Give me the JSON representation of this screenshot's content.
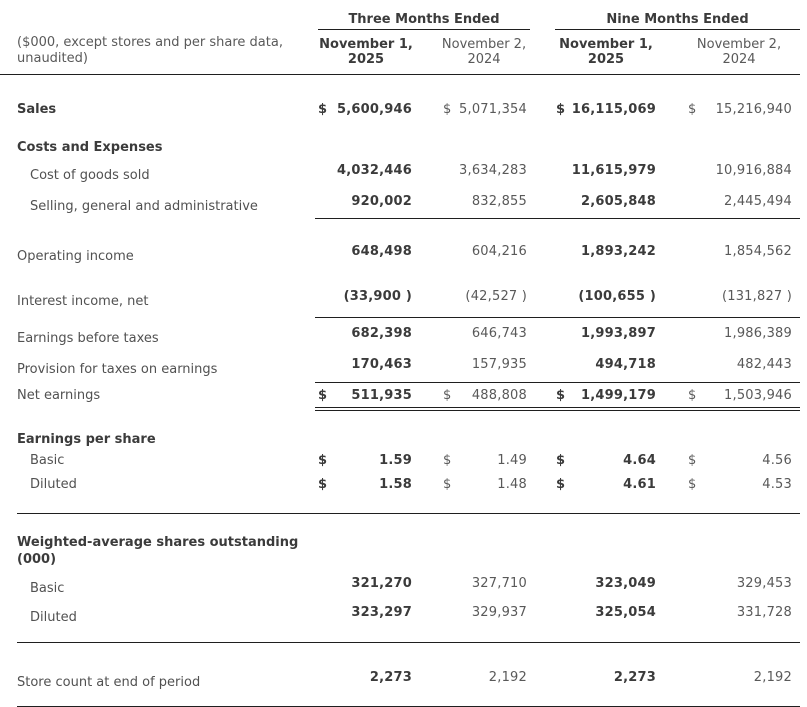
{
  "colors": {
    "text_bold": "#3b3b3b",
    "text_regular": "#595959",
    "rule": "#1f1f1f",
    "background": "#ffffff"
  },
  "header": {
    "note": "($000, except stores and per share data, unaudited)",
    "groups": [
      "Three Months Ended",
      "Nine Months Ended"
    ],
    "columns": [
      "November 1,\n2025",
      "November 2,\n2024",
      "November 1,\n2025",
      "November 2,\n2024"
    ]
  },
  "table": {
    "rows": [
      {
        "label": "Sales",
        "cells": [
          {
            "d": "$",
            "v": "5,600,946"
          },
          {
            "d": "$",
            "v": "5,071,354"
          },
          {
            "d": "$",
            "v": "16,115,069"
          },
          {
            "d": "$",
            "v": "15,216,940"
          }
        ]
      },
      {
        "label": "Costs and Expenses"
      },
      {
        "label": "Cost of goods sold",
        "cells": [
          {
            "v": "4,032,446"
          },
          {
            "v": "3,634,283"
          },
          {
            "v": "11,615,979"
          },
          {
            "v": "10,916,884"
          }
        ]
      },
      {
        "label": "Selling, general and administrative",
        "cells": [
          {
            "v": "920,002"
          },
          {
            "v": "832,855"
          },
          {
            "v": "2,605,848"
          },
          {
            "v": "2,445,494"
          }
        ]
      },
      {
        "label": "Operating income",
        "cells": [
          {
            "v": "648,498"
          },
          {
            "v": "604,216"
          },
          {
            "v": "1,893,242"
          },
          {
            "v": "1,854,562"
          }
        ]
      },
      {
        "label": "Interest income, net",
        "cells": [
          {
            "v": "(33,900 )"
          },
          {
            "v": "(42,527 )"
          },
          {
            "v": "(100,655 )"
          },
          {
            "v": "(131,827 )"
          }
        ]
      },
      {
        "label": "Earnings before taxes",
        "cells": [
          {
            "v": "682,398"
          },
          {
            "v": "646,743"
          },
          {
            "v": "1,993,897"
          },
          {
            "v": "1,986,389"
          }
        ]
      },
      {
        "label": "Provision for taxes on earnings",
        "cells": [
          {
            "v": "170,463"
          },
          {
            "v": "157,935"
          },
          {
            "v": "494,718"
          },
          {
            "v": "482,443"
          }
        ]
      },
      {
        "label": "Net earnings",
        "cells": [
          {
            "d": "$",
            "v": "511,935"
          },
          {
            "d": "$",
            "v": "488,808"
          },
          {
            "d": "$",
            "v": "1,499,179"
          },
          {
            "d": "$",
            "v": "1,503,946"
          }
        ]
      },
      {
        "label": "Earnings per share"
      },
      {
        "label": "Basic",
        "cells": [
          {
            "d": "$",
            "v": "1.59"
          },
          {
            "d": "$",
            "v": "1.49"
          },
          {
            "d": "$",
            "v": "4.64"
          },
          {
            "d": "$",
            "v": "4.56"
          }
        ]
      },
      {
        "label": "Diluted",
        "cells": [
          {
            "d": "$",
            "v": "1.58"
          },
          {
            "d": "$",
            "v": "1.48"
          },
          {
            "d": "$",
            "v": "4.61"
          },
          {
            "d": "$",
            "v": "4.53"
          }
        ]
      },
      {
        "label": "Weighted-average shares outstanding (000)"
      },
      {
        "label": "Basic",
        "cells": [
          {
            "v": "321,270"
          },
          {
            "v": "327,710"
          },
          {
            "v": "323,049"
          },
          {
            "v": "329,453"
          }
        ]
      },
      {
        "label": "Diluted",
        "cells": [
          {
            "v": "323,297"
          },
          {
            "v": "329,937"
          },
          {
            "v": "325,054"
          },
          {
            "v": "331,728"
          }
        ]
      },
      {
        "label": "Store count at end of period",
        "cells": [
          {
            "v": "2,273"
          },
          {
            "v": "2,192"
          },
          {
            "v": "2,273"
          },
          {
            "v": "2,192"
          }
        ]
      }
    ]
  }
}
